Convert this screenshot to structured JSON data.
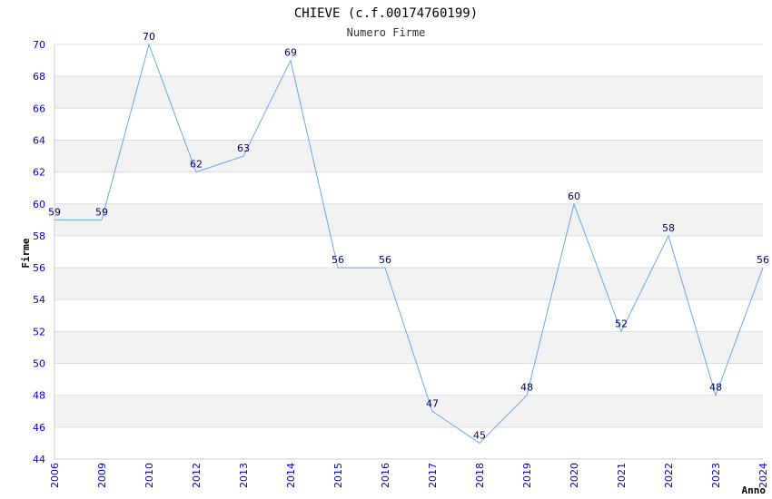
{
  "chart_data": {
    "type": "line",
    "title": "CHIEVE (c.f.00174760199)",
    "subtitle": "Numero Firme",
    "xlabel": "Anno",
    "ylabel": "Firme",
    "ylim": [
      44,
      70
    ],
    "yticks": [
      44,
      46,
      48,
      50,
      52,
      54,
      56,
      58,
      60,
      62,
      64,
      66,
      68,
      70
    ],
    "grid": "horizontal bands",
    "categories": [
      "2006",
      "2009",
      "2010",
      "2012",
      "2013",
      "2014",
      "2015",
      "2016",
      "2017",
      "2018",
      "2019",
      "2020",
      "2021",
      "2022",
      "2023",
      "2024"
    ],
    "values": [
      59,
      59,
      70,
      62,
      63,
      69,
      56,
      56,
      47,
      45,
      48,
      60,
      52,
      58,
      48,
      56
    ],
    "colors": {
      "line": "#66aaee",
      "band": "#f2f2f2",
      "grid": "#dddddd",
      "tick": "#0000cc",
      "data_label": "#000066"
    }
  }
}
